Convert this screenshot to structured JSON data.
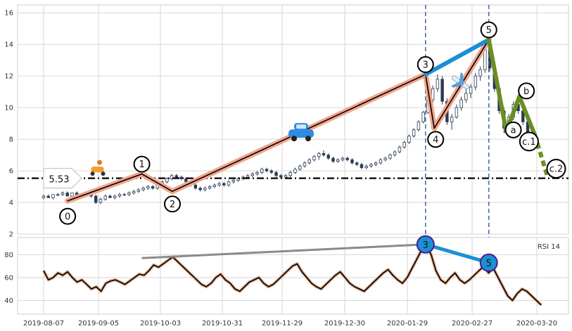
{
  "chart_data": {
    "type": "candlestick",
    "x_ticks": [
      "2019-08-07",
      "2019-09-05",
      "2019-10-03",
      "2019-10-31",
      "2019-11-29",
      "2019-12-30",
      "2020-01-29",
      "2020-02-27",
      "2020-03-20"
    ],
    "price_panel": {
      "ylim": [
        2,
        16.5
      ],
      "yticks": [
        2,
        4,
        6,
        8,
        10,
        12,
        14,
        16
      ],
      "grid": true,
      "support_level": 5.53,
      "support_label": "5.53",
      "vertical_markers": [
        "2020-01-29",
        "2020-02-27"
      ],
      "waves": [
        {
          "label": "0",
          "date": "2019-08-18",
          "value": 4.1
        },
        {
          "label": "1",
          "date": "2019-09-21",
          "value": 5.8
        },
        {
          "label": "2",
          "date": "2019-10-05",
          "value": 4.7
        },
        {
          "label": "3",
          "date": "2020-01-29",
          "value": 12.1
        },
        {
          "label": "4",
          "date": "2020-02-02",
          "value": 8.7
        },
        {
          "label": "5",
          "date": "2020-02-27",
          "value": 14.3
        },
        {
          "label": "a",
          "date": "2020-03-06",
          "value": 8.5
        },
        {
          "label": "b",
          "date": "2020-03-12",
          "value": 10.7
        },
        {
          "label": "c.1",
          "date": "2020-03-19",
          "value": 8.3
        },
        {
          "label": "c.2",
          "date": "2020-03-25",
          "value": 5.6
        }
      ],
      "candles": [
        [
          4.3,
          4.5,
          4.2,
          4.4
        ],
        [
          4.4,
          4.5,
          4.3,
          4.3
        ],
        [
          4.3,
          4.5,
          4.2,
          4.5
        ],
        [
          4.5,
          4.6,
          4.4,
          4.5
        ],
        [
          4.5,
          4.7,
          4.4,
          4.6
        ],
        [
          4.6,
          4.7,
          4.4,
          4.4
        ],
        [
          4.4,
          4.6,
          4.3,
          4.6
        ],
        [
          4.6,
          4.7,
          4.4,
          4.4
        ],
        [
          4.4,
          4.5,
          4.3,
          4.5
        ],
        [
          4.5,
          4.7,
          4.4,
          4.6
        ],
        [
          4.6,
          4.6,
          4.3,
          4.4
        ],
        [
          4.4,
          4.5,
          3.9,
          4.0
        ],
        [
          4.0,
          4.3,
          3.9,
          4.2
        ],
        [
          4.2,
          4.5,
          4.1,
          4.4
        ],
        [
          4.4,
          4.5,
          4.3,
          4.3
        ],
        [
          4.3,
          4.5,
          4.2,
          4.4
        ],
        [
          4.4,
          4.6,
          4.3,
          4.5
        ],
        [
          4.5,
          4.6,
          4.4,
          4.5
        ],
        [
          4.5,
          4.7,
          4.4,
          4.6
        ],
        [
          4.6,
          4.8,
          4.5,
          4.7
        ],
        [
          4.7,
          4.9,
          4.6,
          4.8
        ],
        [
          4.8,
          5.0,
          4.7,
          4.9
        ],
        [
          4.9,
          5.1,
          4.8,
          5.0
        ],
        [
          5.0,
          5.1,
          4.8,
          4.9
        ],
        [
          4.9,
          5.3,
          4.8,
          5.2
        ],
        [
          5.2,
          5.4,
          5.1,
          5.3
        ],
        [
          5.3,
          5.6,
          5.2,
          5.5
        ],
        [
          5.5,
          5.8,
          5.4,
          5.7
        ],
        [
          5.7,
          5.8,
          5.5,
          5.6
        ],
        [
          5.6,
          5.7,
          5.4,
          5.5
        ],
        [
          5.5,
          5.6,
          5.2,
          5.3
        ],
        [
          5.3,
          5.4,
          5.0,
          5.1
        ],
        [
          5.1,
          5.2,
          4.8,
          4.9
        ],
        [
          4.9,
          5.0,
          4.7,
          4.8
        ],
        [
          4.8,
          5.0,
          4.7,
          4.9
        ],
        [
          4.9,
          5.1,
          4.8,
          5.0
        ],
        [
          5.0,
          5.2,
          4.9,
          5.1
        ],
        [
          5.1,
          5.3,
          5.0,
          5.2
        ],
        [
          5.2,
          5.3,
          5.0,
          5.1
        ],
        [
          5.1,
          5.4,
          5.0,
          5.3
        ],
        [
          5.3,
          5.5,
          5.2,
          5.4
        ],
        [
          5.4,
          5.6,
          5.3,
          5.5
        ],
        [
          5.5,
          5.7,
          5.4,
          5.6
        ],
        [
          5.6,
          5.8,
          5.5,
          5.7
        ],
        [
          5.7,
          5.9,
          5.6,
          5.8
        ],
        [
          5.8,
          6.0,
          5.7,
          5.9
        ],
        [
          5.9,
          6.2,
          5.8,
          6.1
        ],
        [
          6.1,
          6.2,
          5.9,
          6.0
        ],
        [
          6.0,
          6.1,
          5.8,
          5.9
        ],
        [
          5.9,
          6.0,
          5.6,
          5.7
        ],
        [
          5.7,
          5.8,
          5.5,
          5.6
        ],
        [
          5.6,
          5.8,
          5.5,
          5.7
        ],
        [
          5.7,
          6.0,
          5.6,
          5.9
        ],
        [
          5.9,
          6.2,
          5.8,
          6.1
        ],
        [
          6.1,
          6.4,
          6.0,
          6.3
        ],
        [
          6.3,
          6.6,
          6.2,
          6.5
        ],
        [
          6.5,
          6.8,
          6.4,
          6.7
        ],
        [
          6.7,
          7.0,
          6.6,
          6.9
        ],
        [
          6.9,
          7.2,
          6.7,
          7.1
        ],
        [
          7.1,
          7.3,
          6.9,
          7.0
        ],
        [
          7.0,
          7.1,
          6.7,
          6.8
        ],
        [
          6.8,
          6.9,
          6.5,
          6.6
        ],
        [
          6.6,
          6.8,
          6.5,
          6.7
        ],
        [
          6.7,
          6.9,
          6.6,
          6.8
        ],
        [
          6.8,
          6.9,
          6.6,
          6.7
        ],
        [
          6.7,
          6.8,
          6.4,
          6.5
        ],
        [
          6.5,
          6.6,
          6.3,
          6.4
        ],
        [
          6.4,
          6.5,
          6.1,
          6.2
        ],
        [
          6.2,
          6.4,
          6.1,
          6.3
        ],
        [
          6.3,
          6.5,
          6.2,
          6.4
        ],
        [
          6.4,
          6.6,
          6.3,
          6.5
        ],
        [
          6.5,
          6.8,
          6.4,
          6.7
        ],
        [
          6.7,
          6.9,
          6.6,
          6.8
        ],
        [
          6.8,
          7.1,
          6.7,
          7.0
        ],
        [
          7.0,
          7.3,
          6.9,
          7.2
        ],
        [
          7.2,
          7.6,
          7.1,
          7.5
        ],
        [
          7.5,
          7.9,
          7.4,
          7.8
        ],
        [
          7.8,
          8.3,
          7.7,
          8.2
        ],
        [
          8.2,
          8.7,
          8.1,
          8.6
        ],
        [
          8.6,
          9.2,
          8.5,
          9.1
        ],
        [
          9.1,
          9.8,
          9.0,
          9.7
        ],
        [
          9.7,
          10.6,
          9.6,
          10.5
        ],
        [
          10.5,
          11.4,
          10.3,
          11.2
        ],
        [
          11.2,
          12.1,
          11.0,
          11.8
        ],
        [
          11.8,
          12.0,
          10.2,
          10.4
        ],
        [
          10.4,
          10.6,
          8.9,
          9.1
        ],
        [
          9.1,
          9.6,
          8.6,
          9.4
        ],
        [
          9.4,
          10.2,
          9.3,
          10.0
        ],
        [
          10.0,
          10.7,
          9.8,
          10.5
        ],
        [
          10.5,
          11.2,
          10.3,
          10.9
        ],
        [
          10.9,
          11.5,
          10.6,
          11.3
        ],
        [
          11.3,
          12.2,
          11.1,
          12.0
        ],
        [
          12.0,
          12.6,
          11.7,
          12.4
        ],
        [
          12.4,
          14.3,
          12.2,
          13.8
        ],
        [
          13.8,
          14.0,
          12.3,
          12.5
        ],
        [
          12.5,
          12.7,
          11.0,
          11.2
        ],
        [
          11.2,
          11.4,
          9.6,
          9.8
        ],
        [
          9.8,
          10.0,
          8.4,
          8.7
        ],
        [
          8.7,
          9.6,
          8.5,
          9.4
        ],
        [
          9.4,
          10.4,
          9.2,
          10.2
        ],
        [
          10.2,
          10.7,
          9.6,
          9.8
        ],
        [
          9.8,
          10.0,
          8.9,
          9.1
        ],
        [
          9.1,
          9.3,
          8.2,
          8.4
        ],
        [
          8.4,
          8.6,
          7.6,
          7.8
        ]
      ]
    },
    "rsi_panel": {
      "label": "RSI 14",
      "ylim": [
        28,
        95
      ],
      "yticks": [
        40,
        60,
        80
      ],
      "grid": true,
      "values": [
        66,
        58,
        60,
        64,
        62,
        65,
        60,
        56,
        58,
        54,
        50,
        52,
        48,
        55,
        57,
        58,
        56,
        54,
        57,
        60,
        63,
        62,
        66,
        71,
        69,
        72,
        75,
        78,
        74,
        70,
        66,
        62,
        58,
        54,
        52,
        55,
        60,
        63,
        58,
        55,
        50,
        48,
        52,
        56,
        58,
        60,
        55,
        52,
        54,
        58,
        62,
        66,
        70,
        72,
        65,
        60,
        55,
        52,
        50,
        54,
        58,
        62,
        65,
        60,
        55,
        52,
        50,
        48,
        52,
        56,
        60,
        64,
        67,
        62,
        58,
        55,
        60,
        68,
        76,
        84,
        88,
        80,
        66,
        58,
        55,
        60,
        64,
        58,
        55,
        58,
        62,
        66,
        70,
        64,
        68,
        60,
        52,
        44,
        40,
        46,
        50,
        48,
        44,
        40,
        36
      ],
      "trendlines": [
        {
          "from": {
            "date": "2019-09-21",
            "value": 77
          },
          "to": {
            "date": "2020-01-29",
            "value": 89
          },
          "color": "#8a8a8a"
        },
        {
          "from": {
            "date": "2020-01-29",
            "value": 89
          },
          "to": {
            "date": "2020-02-27",
            "value": 73
          },
          "color": "#1b8fd6"
        }
      ],
      "markers": [
        {
          "label": "3",
          "date": "2020-01-29",
          "value": 89
        },
        {
          "label": "5",
          "date": "2020-02-27",
          "value": 73
        }
      ]
    },
    "colors": {
      "impulse": "#f2a58e",
      "correction": "#6b8e23",
      "diagonal": "#1b8fd6",
      "support": "#000000",
      "marker": "#4a6fa5"
    },
    "icons": [
      "scooter-icon",
      "car-icon",
      "airplane-icon"
    ]
  }
}
